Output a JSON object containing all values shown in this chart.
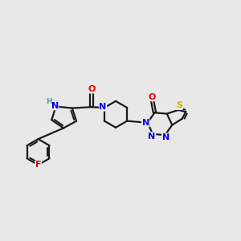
{
  "background_color": "#e8e8e8",
  "bond_color": "#1a1a1a",
  "bond_width": 1.6,
  "atom_colors": {
    "N": "#0000ee",
    "O": "#ee0000",
    "S": "#bbbb00",
    "F": "#cc0000",
    "H": "#4a9a9a",
    "C": "#1a1a1a"
  },
  "font_size": 8.0,
  "fig_width": 3.0,
  "fig_height": 3.0,
  "xlim": [
    0.0,
    8.5
  ],
  "ylim": [
    0.8,
    5.6
  ]
}
